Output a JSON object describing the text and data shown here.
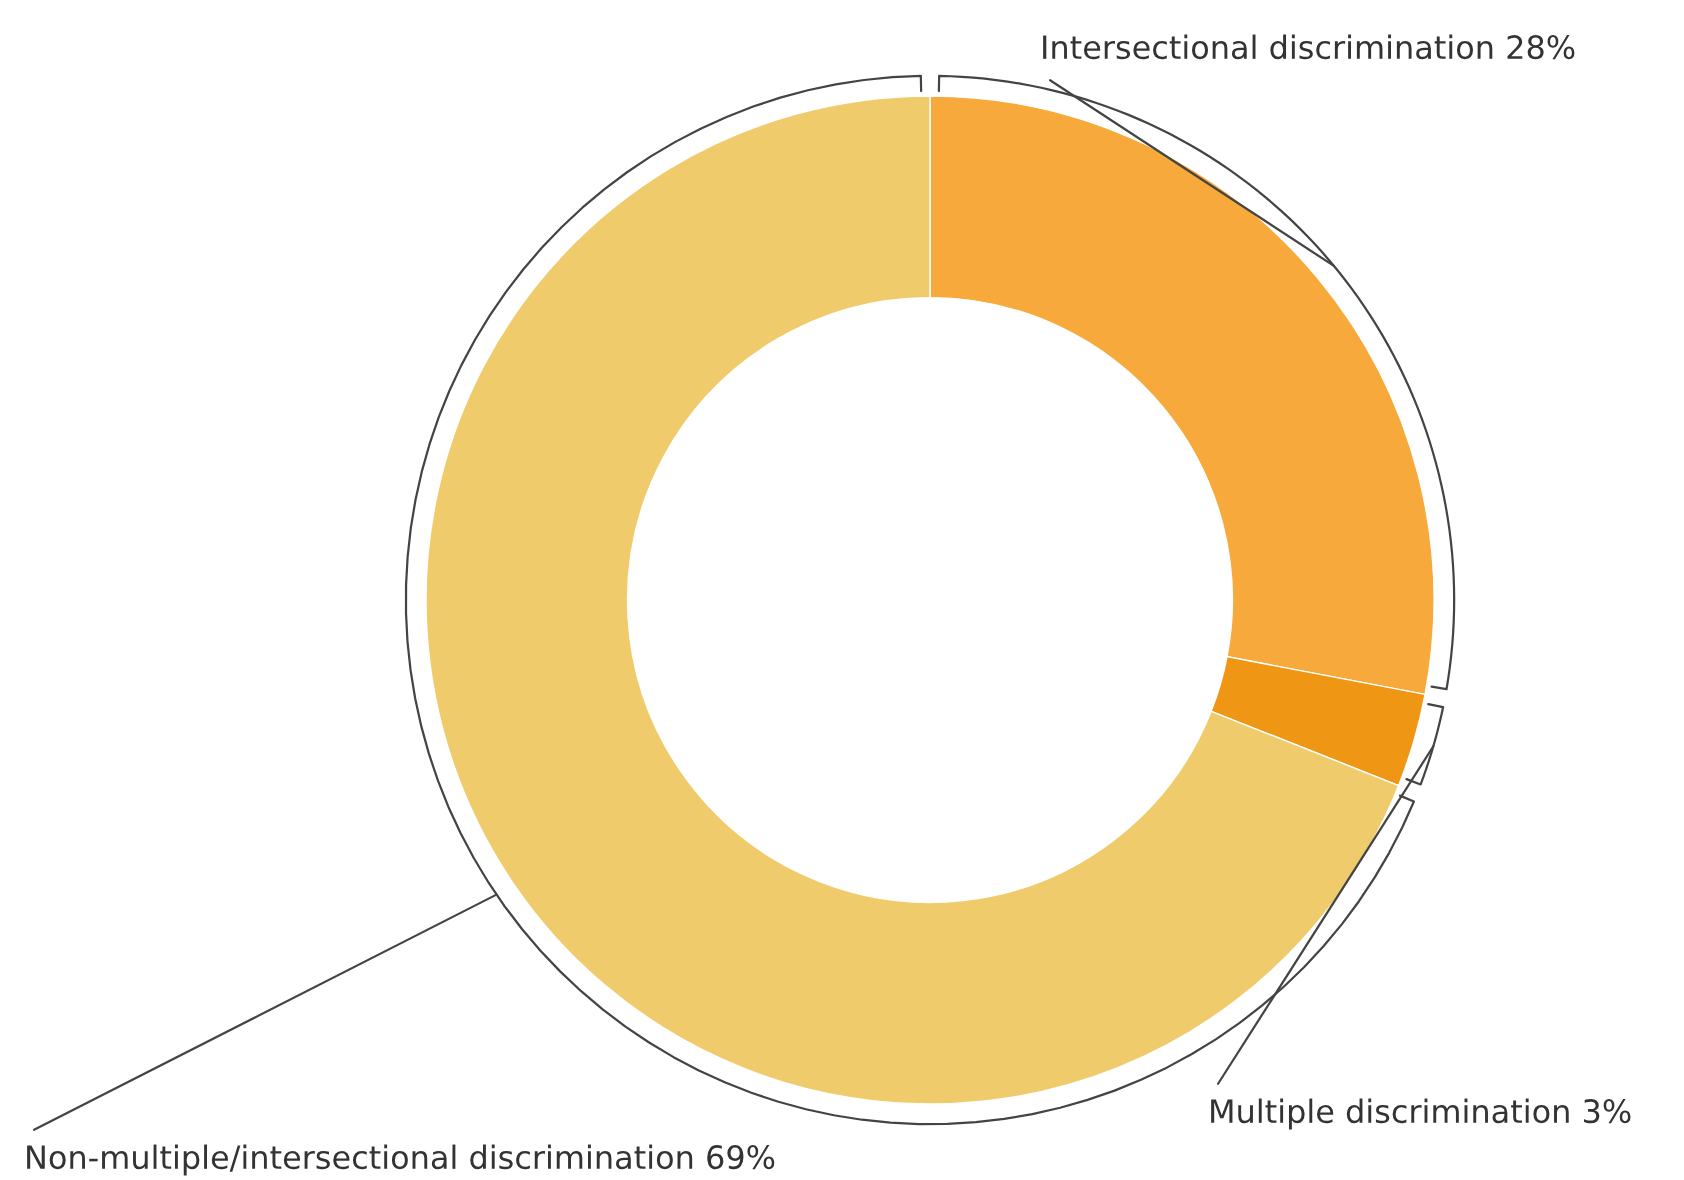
{
  "chart_data": {
    "type": "donut",
    "categories": [
      "Intersectional discrimination",
      "Multiple discrimination",
      "Non-multiple/intersectional discrimination"
    ],
    "values": [
      28,
      3,
      69
    ],
    "value_labels": [
      "28%",
      "3%",
      "69%"
    ],
    "colors": [
      "#f7a93b",
      "#ef9614",
      "#efcb6b"
    ]
  }
}
